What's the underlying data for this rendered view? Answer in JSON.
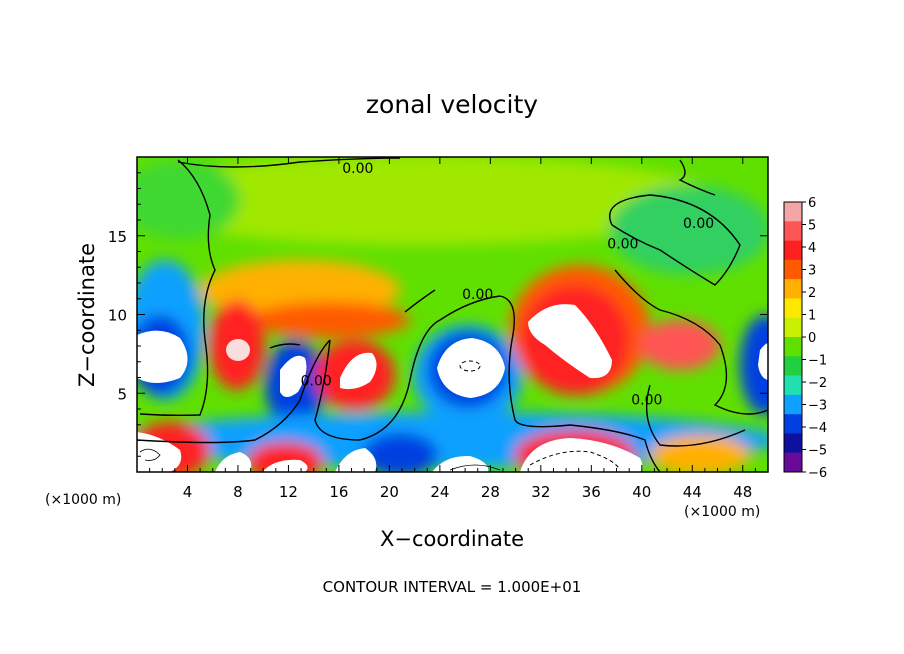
{
  "chart_data": {
    "type": "heatmap",
    "title": "zonal velocity",
    "xlabel": "X−coordinate",
    "ylabel": "Z−coordinate",
    "x_unit": "(×1000 m)",
    "z_unit": "(×1000 m)",
    "xlim": [
      0,
      50
    ],
    "ylim": [
      0,
      20
    ],
    "x_ticks": [
      4,
      8,
      12,
      16,
      20,
      24,
      28,
      32,
      36,
      40,
      44,
      48
    ],
    "y_ticks": [
      5,
      10,
      15
    ],
    "colorbar": {
      "range": [
        -6,
        6
      ],
      "ticks": [
        "6",
        "5",
        "4",
        "3",
        "2",
        "1",
        "0",
        "−1",
        "−2",
        "−3",
        "−4",
        "−5",
        "−6"
      ],
      "colors": [
        "#f4a6a6",
        "#ff5555",
        "#ff2020",
        "#ff5a00",
        "#ffb000",
        "#ffe800",
        "#c8f000",
        "#60e000",
        "#20d040",
        "#20e0b0",
        "#10a0ff",
        "#0040e0",
        "#1010a0",
        "#6a0a9a"
      ]
    },
    "contour_labels": [
      {
        "text": "0.00",
        "x": 17.5,
        "z": 19.0
      },
      {
        "text": "0.00",
        "x": 44.5,
        "z": 15.5
      },
      {
        "text": "0.00",
        "x": 38.5,
        "z": 14.2
      },
      {
        "text": "0.00",
        "x": 27.0,
        "z": 11.0
      },
      {
        "text": "0.00",
        "x": 14.2,
        "z": 5.5
      },
      {
        "text": "0.00",
        "x": 40.4,
        "z": 4.3
      }
    ],
    "footer": "CONTOUR INTERVAL = 1.000E+01"
  }
}
